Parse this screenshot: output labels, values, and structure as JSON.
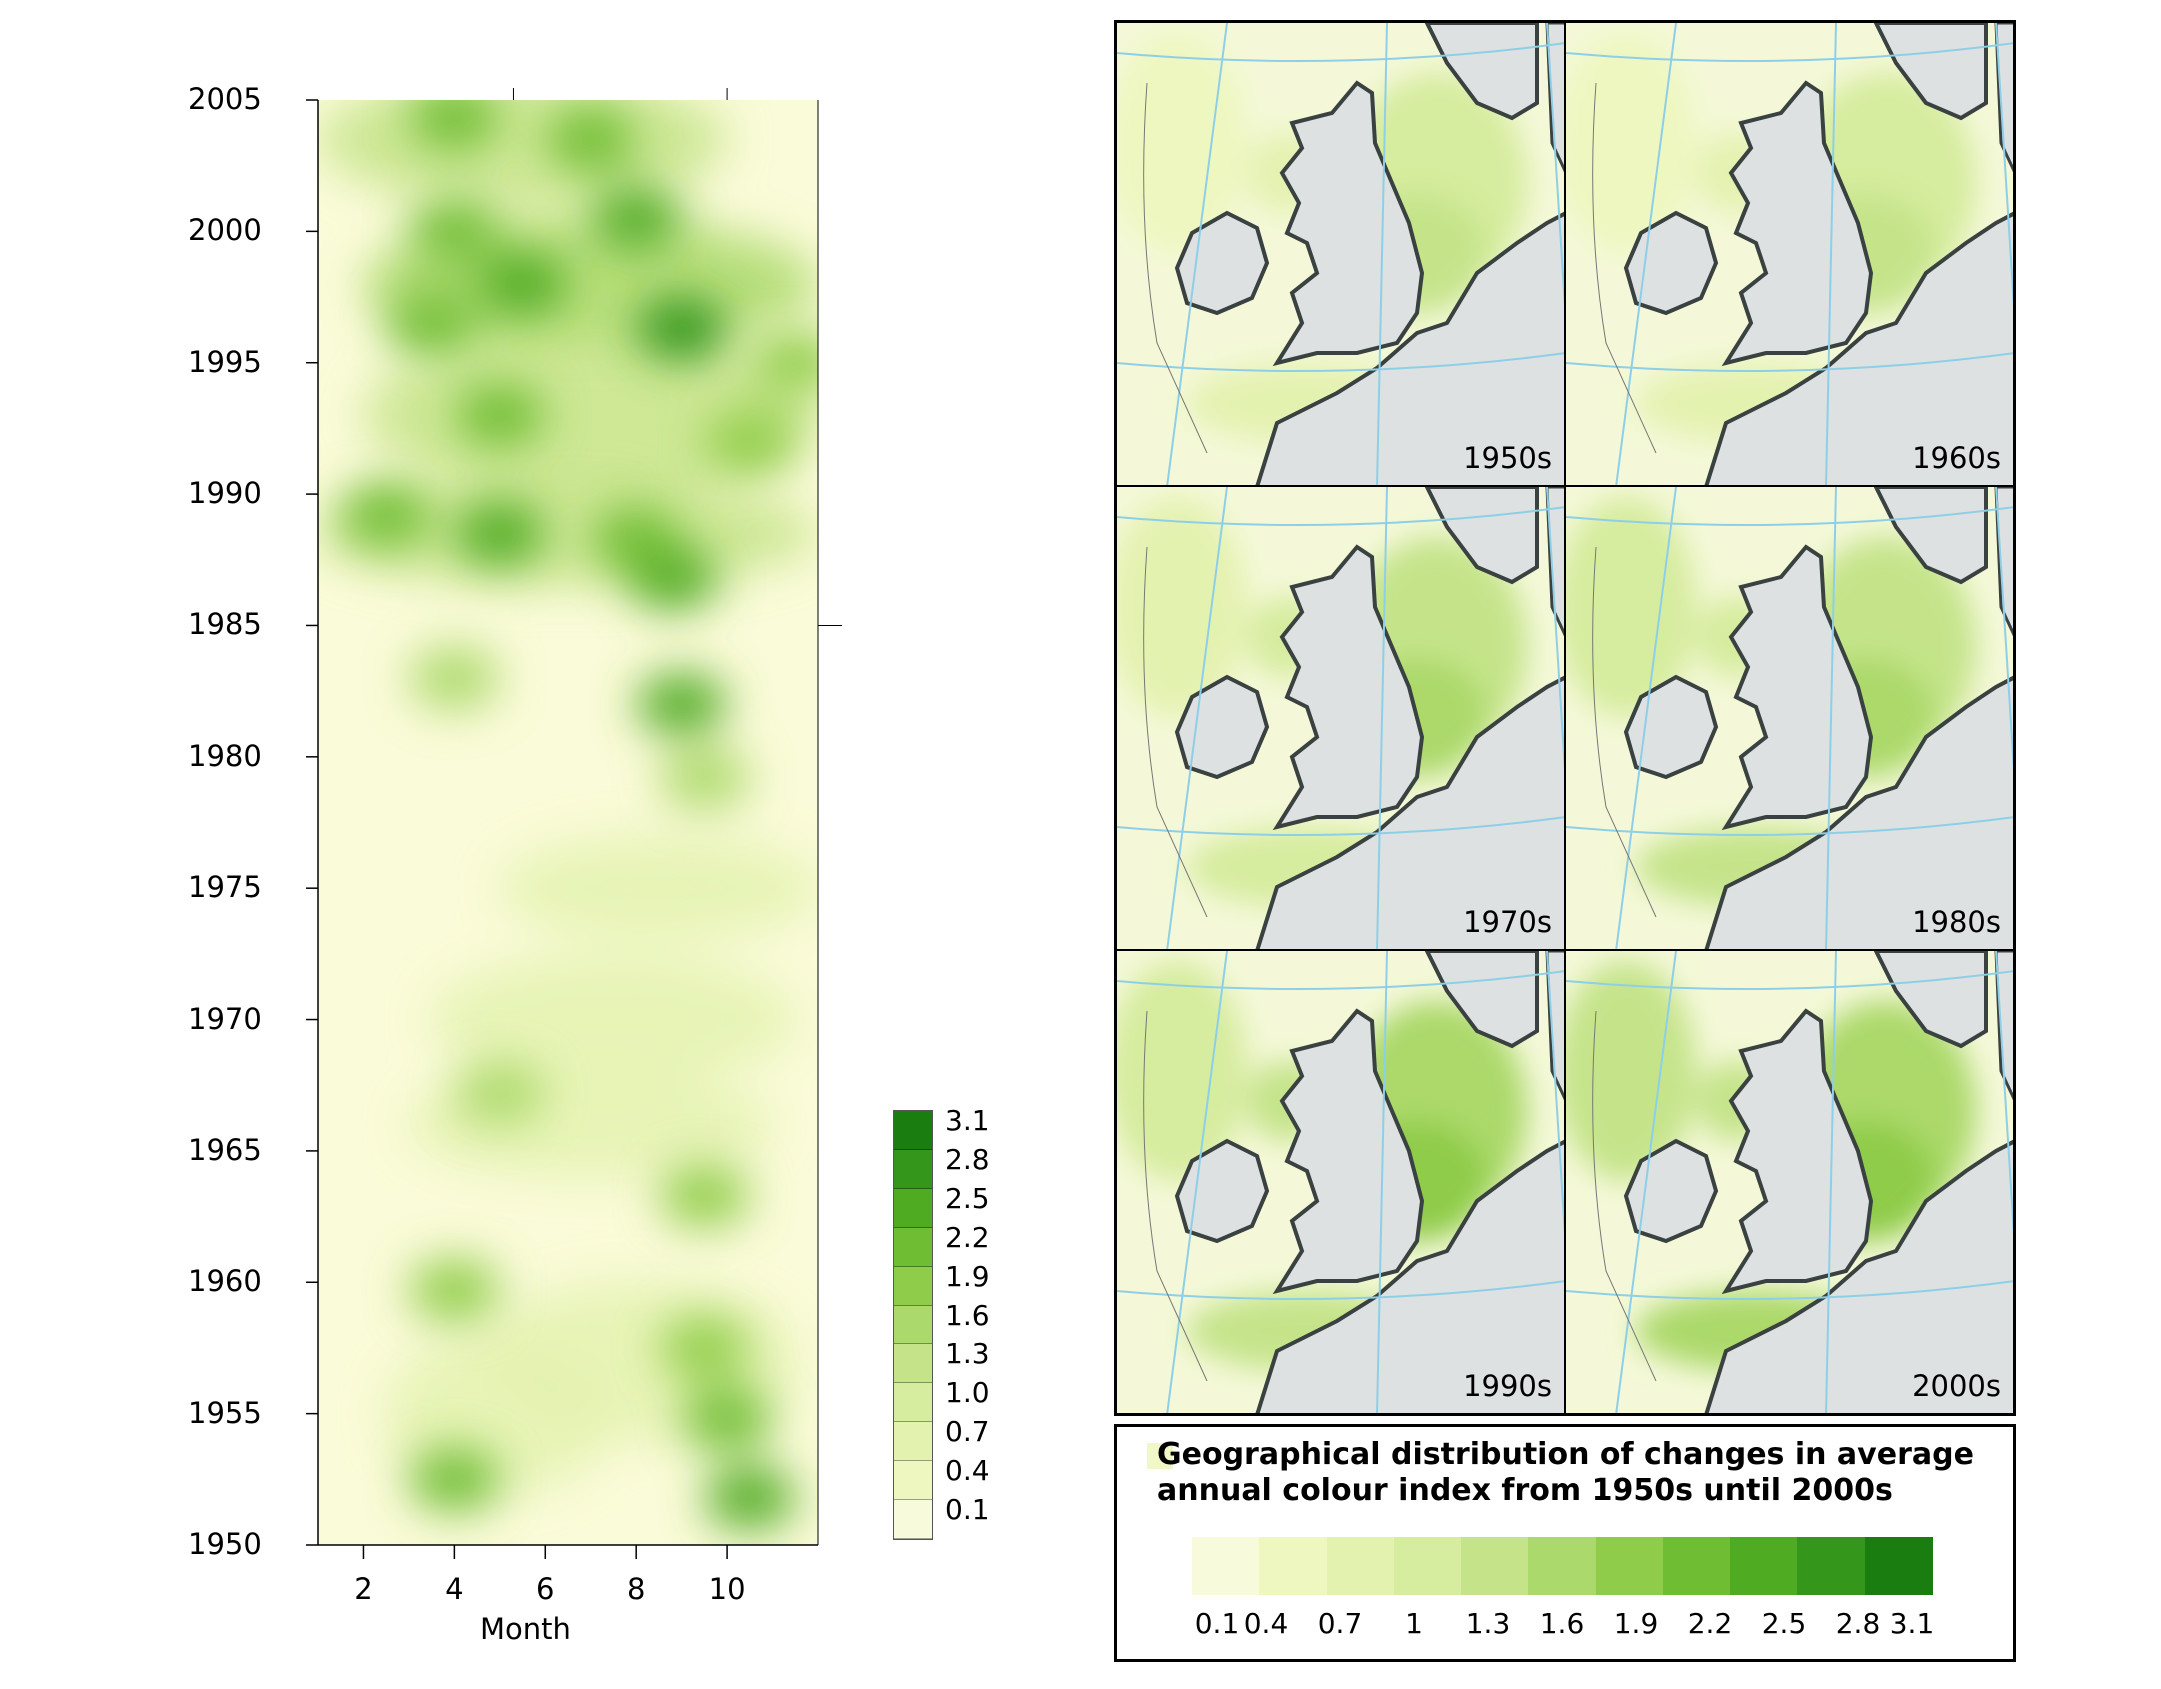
{
  "chart_data": [
    {
      "type": "heatmap",
      "xlabel": "Month",
      "ylabel": "",
      "x_ticks": [
        2,
        4,
        6,
        8,
        10
      ],
      "y_ticks": [
        1950,
        1955,
        1960,
        1965,
        1970,
        1975,
        1980,
        1985,
        1990,
        1995,
        2000,
        2005
      ],
      "xlim": [
        1,
        12
      ],
      "ylim": [
        1950,
        2005
      ],
      "colorbar": {
        "ticks": [
          3.1,
          2.8,
          2.5,
          2.2,
          1.9,
          1.6,
          1.3,
          1.0,
          0.7,
          0.4,
          0.1
        ],
        "tick_labels": [
          "3.1",
          "2.8",
          "2.5",
          "2.2",
          "1.9",
          "1.6",
          "1.3",
          "1.0",
          "0.7",
          "0.4",
          "0.1"
        ]
      },
      "hotspots": [
        {
          "month": 4.0,
          "year": 1952.5,
          "value": 2.2
        },
        {
          "month": 10.5,
          "year": 1951.8,
          "value": 2.5
        },
        {
          "month": 10.0,
          "year": 1954.8,
          "value": 2.2
        },
        {
          "month": 9.5,
          "year": 1957.5,
          "value": 1.9
        },
        {
          "month": 4.0,
          "year": 1959.7,
          "value": 2.0
        },
        {
          "month": 9.5,
          "year": 1963.3,
          "value": 2.0
        },
        {
          "month": 5.0,
          "year": 1967.2,
          "value": 1.6
        },
        {
          "month": 9.0,
          "year": 1982.0,
          "value": 2.5
        },
        {
          "month": 9.5,
          "year": 1979.2,
          "value": 1.7
        },
        {
          "month": 4.0,
          "year": 1983.0,
          "value": 1.6
        },
        {
          "month": 8.8,
          "year": 1986.8,
          "value": 2.6
        },
        {
          "month": 5.0,
          "year": 1988.5,
          "value": 2.5
        },
        {
          "month": 2.5,
          "year": 1989.2,
          "value": 2.3
        },
        {
          "month": 8.0,
          "year": 1988.3,
          "value": 2.2
        },
        {
          "month": 5.0,
          "year": 1993.0,
          "value": 2.4
        },
        {
          "month": 9.0,
          "year": 1996.3,
          "value": 2.8
        },
        {
          "month": 5.5,
          "year": 1998.0,
          "value": 2.5
        },
        {
          "month": 3.5,
          "year": 1996.5,
          "value": 2.2
        },
        {
          "month": 8.0,
          "year": 2000.5,
          "value": 2.5
        },
        {
          "month": 4.0,
          "year": 2000.0,
          "value": 2.3
        },
        {
          "month": 7.0,
          "year": 2003.5,
          "value": 2.2
        },
        {
          "month": 4.0,
          "year": 2004.3,
          "value": 2.3
        },
        {
          "month": 10.5,
          "year": 1992.0,
          "value": 1.9
        },
        {
          "month": 11.5,
          "year": 1995.0,
          "value": 1.9
        }
      ]
    },
    {
      "type": "map",
      "panels": [
        {
          "label": "1950s"
        },
        {
          "label": "1960s"
        },
        {
          "label": "1970s"
        },
        {
          "label": "1980s"
        },
        {
          "label": "1990s"
        },
        {
          "label": "2000s"
        }
      ],
      "legend": {
        "title_line1": "Geographical distribution of changes in average",
        "title_line2": "annual colour index from 1950s until 2000s",
        "values": [
          0.1,
          0.4,
          0.7,
          1,
          1.3,
          1.6,
          1.9,
          2.2,
          2.5,
          2.8,
          3.1
        ],
        "tick_labels": [
          "0.1",
          "0.4",
          "0.7",
          "1",
          "1.3",
          "1.6",
          "1.9",
          "2.2",
          "2.5",
          "2.8",
          "3.1"
        ],
        "colors": [
          "#f7fbdc",
          "#eef7c0",
          "#e4f2b0",
          "#d6ec9e",
          "#c5e48a",
          "#acd96b",
          "#8fcc4a",
          "#6fbd33",
          "#4fab22",
          "#34961a",
          "#1a7d10"
        ]
      }
    }
  ]
}
